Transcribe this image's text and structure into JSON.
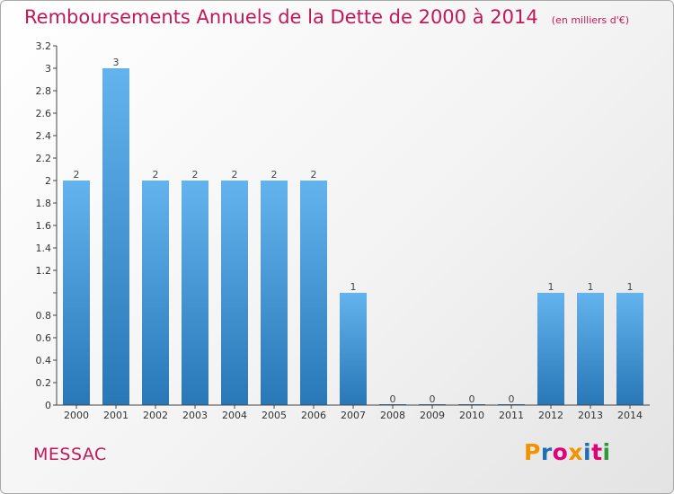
{
  "header": {
    "title": "Remboursements Annuels de la Dette de 2000 à 2014",
    "unit": "(en milliers d'€)"
  },
  "footer": {
    "city": "MESSAC",
    "logo": [
      "P",
      "r",
      "o",
      "x",
      "i",
      "t",
      "i"
    ],
    "logo_colors": [
      "#f39200",
      "#1f6fb5",
      "#e2007a",
      "#f39200",
      "#1f6fb5",
      "#e2007a",
      "#2c9b3a"
    ]
  },
  "colors": {
    "bar_light": "#63b3ee",
    "bar_dark": "#2878b8",
    "title": "#c2185b"
  },
  "chart_data": {
    "type": "bar",
    "categories": [
      "2000",
      "2001",
      "2002",
      "2003",
      "2004",
      "2005",
      "2006",
      "2007",
      "2008",
      "2009",
      "2010",
      "2011",
      "2012",
      "2013",
      "2014"
    ],
    "values": [
      2,
      3,
      2,
      2,
      2,
      2,
      2,
      1,
      0,
      0,
      0,
      0,
      1,
      1,
      1
    ],
    "value_labels": [
      "2",
      "3",
      "2",
      "2",
      "2",
      "2",
      "2",
      "1",
      "0",
      "0",
      "0",
      "0",
      "1",
      "1",
      "1"
    ],
    "ylim": [
      0,
      3.2
    ],
    "yticks": [
      0,
      0.2,
      0.4,
      0.6,
      0.8,
      1,
      1.2,
      1.4,
      1.6,
      1.8,
      2,
      2.2,
      2.4,
      2.6,
      2.8,
      3,
      3.2
    ],
    "ytick_labels": [
      "0",
      "0.2",
      "0.4",
      "0.6",
      "0.8",
      "",
      "1.2",
      "1.4",
      "1.6",
      "1.8",
      "2",
      "2.2",
      "2.4",
      "2.6",
      "2.8",
      "3",
      "3.2"
    ],
    "grid": false
  }
}
